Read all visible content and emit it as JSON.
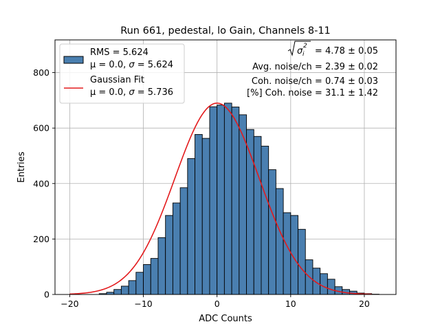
{
  "chart_data": {
    "type": "bar",
    "title": "Run 661, pedestal, lo Gain, Channels 8-11",
    "xlabel": "ADC Counts",
    "ylabel": "Entries",
    "xlim": [
      -22,
      24.3
    ],
    "ylim": [
      0,
      918
    ],
    "xticks": [
      -20,
      -10,
      0,
      10,
      20
    ],
    "xtick_labels": [
      "−20",
      "−10",
      "0",
      "10",
      "20"
    ],
    "yticks": [
      0,
      200,
      400,
      600,
      800
    ],
    "ytick_labels": [
      "0",
      "200",
      "400",
      "600",
      "800"
    ],
    "grid": true,
    "legend_position": "top-left",
    "bar_color": "#4a7fb0",
    "fit_color": "#e31a1c",
    "bins": [
      {
        "x0": -16,
        "x1": -15,
        "count": 3
      },
      {
        "x0": -15,
        "x1": -14,
        "count": 8
      },
      {
        "x0": -14,
        "x1": -13,
        "count": 18
      },
      {
        "x0": -13,
        "x1": -12,
        "count": 30
      },
      {
        "x0": -12,
        "x1": -11,
        "count": 50
      },
      {
        "x0": -11,
        "x1": -10,
        "count": 80
      },
      {
        "x0": -10,
        "x1": -9,
        "count": 108
      },
      {
        "x0": -9,
        "x1": -8,
        "count": 130
      },
      {
        "x0": -8,
        "x1": -7,
        "count": 205
      },
      {
        "x0": -7,
        "x1": -6,
        "count": 285
      },
      {
        "x0": -6,
        "x1": -5,
        "count": 330
      },
      {
        "x0": -5,
        "x1": -4,
        "count": 385
      },
      {
        "x0": -4,
        "x1": -3,
        "count": 490
      },
      {
        "x0": -3,
        "x1": -2,
        "count": 577
      },
      {
        "x0": -2,
        "x1": -1,
        "count": 563
      },
      {
        "x0": -1,
        "x1": 0,
        "count": 677
      },
      {
        "x0": 0,
        "x1": 1,
        "count": 683
      },
      {
        "x0": 1,
        "x1": 2,
        "count": 690
      },
      {
        "x0": 2,
        "x1": 3,
        "count": 676
      },
      {
        "x0": 3,
        "x1": 4,
        "count": 648
      },
      {
        "x0": 4,
        "x1": 5,
        "count": 595
      },
      {
        "x0": 5,
        "x1": 6,
        "count": 570
      },
      {
        "x0": 6,
        "x1": 7,
        "count": 535
      },
      {
        "x0": 7,
        "x1": 8,
        "count": 450
      },
      {
        "x0": 8,
        "x1": 9,
        "count": 382
      },
      {
        "x0": 9,
        "x1": 10,
        "count": 295
      },
      {
        "x0": 10,
        "x1": 11,
        "count": 285
      },
      {
        "x0": 11,
        "x1": 12,
        "count": 235
      },
      {
        "x0": 12,
        "x1": 13,
        "count": 125
      },
      {
        "x0": 13,
        "x1": 14,
        "count": 95
      },
      {
        "x0": 14,
        "x1": 15,
        "count": 75
      },
      {
        "x0": 15,
        "x1": 16,
        "count": 55
      },
      {
        "x0": 16,
        "x1": 17,
        "count": 28
      },
      {
        "x0": 17,
        "x1": 18,
        "count": 18
      },
      {
        "x0": 18,
        "x1": 19,
        "count": 12
      },
      {
        "x0": 19,
        "x1": 20,
        "count": 5
      },
      {
        "x0": 20,
        "x1": 21,
        "count": 3
      },
      {
        "x0": 21,
        "x1": 22,
        "count": 1
      }
    ],
    "gaussian_fit": {
      "amplitude": 690,
      "mean": 0.0,
      "sigma": 5.736,
      "x_range": [
        -20,
        21
      ]
    },
    "legend": {
      "hist_line1": "RMS = 5.624",
      "hist_line2_prefix": "μ = 0.0, ",
      "hist_line2_sigma": "σ",
      "hist_line2_suffix": " = 5.624",
      "fit_line1": "Gaussian Fit",
      "fit_line2_prefix": "μ = 0.0, ",
      "fit_line2_sigma": "σ",
      "fit_line2_suffix": " = 5.736"
    },
    "annotations": {
      "sigma_sq_symbol": "σ",
      "sigma_sq_sub": "i",
      "sigma_sq_sup": "2",
      "sigma_sq_value": " = 4.78 ± 0.05",
      "avg_noise": "Avg. noise/ch = 2.39 ± 0.02",
      "coh_noise": "Coh. noise/ch = 0.74 ± 0.03",
      "coh_noise_pct": "[%] Coh. noise = 31.1 ± 1.42"
    }
  }
}
